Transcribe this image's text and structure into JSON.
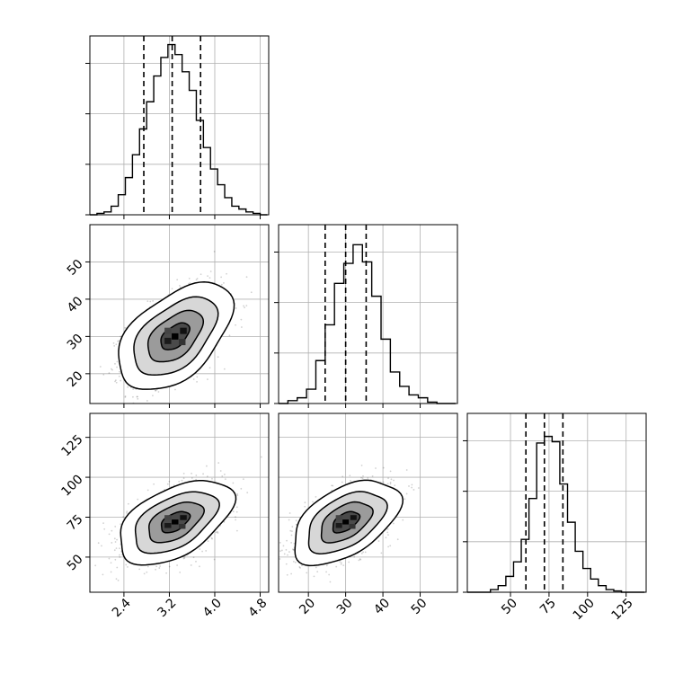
{
  "chart_data": {
    "type": "corner",
    "grid": true,
    "colors": {
      "line": "#000000",
      "grid": "#b0b0b0",
      "point": "#000000",
      "background": "#ffffff"
    },
    "panel_size": 199,
    "panel_gap": 11,
    "plot_origin": [
      100,
      40
    ],
    "params": [
      {
        "xlim": [
          1.8,
          4.95
        ],
        "ylim": [
          12,
          60
        ],
        "ticks": [
          2.4,
          3.2,
          4.0,
          4.8
        ],
        "tick_labels": [
          "2.4",
          "3.2",
          "4.0",
          "4.8"
        ]
      },
      {
        "xlim": [
          12,
          60
        ],
        "ylim": [
          12,
          60
        ],
        "ticks": [
          20,
          30,
          40,
          50
        ],
        "tick_labels": [
          "20",
          "30",
          "40",
          "50"
        ]
      },
      {
        "xlim": [
          22,
          138
        ],
        "ylim": [
          28,
          140
        ],
        "ticks": [
          50,
          75,
          100,
          125
        ],
        "tick_labels": [
          "50",
          "75",
          "100",
          "125"
        ]
      }
    ],
    "histograms": [
      {
        "param": 0,
        "edges": [
          1.8,
          1.925,
          2.05,
          2.175,
          2.3,
          2.425,
          2.55,
          2.675,
          2.8,
          2.925,
          3.05,
          3.175,
          3.3,
          3.425,
          3.55,
          3.675,
          3.8,
          3.925,
          4.05,
          4.175,
          4.3,
          4.425,
          4.55,
          4.675,
          4.8,
          4.925
        ],
        "counts": [
          0,
          1,
          2,
          6,
          14,
          26,
          42,
          60,
          79,
          97,
          110,
          119,
          112,
          100,
          87,
          66,
          47,
          32,
          21,
          12,
          6,
          4,
          2,
          1,
          0
        ],
        "quantiles": [
          2.75,
          3.25,
          3.75
        ],
        "ymax": 120
      },
      {
        "param": 1,
        "edges": [
          12,
          14.5,
          17,
          19.5,
          22,
          24.5,
          27,
          29.5,
          32,
          34.5,
          37,
          39.5,
          42,
          44.5,
          47,
          49.5,
          52,
          54.5,
          57,
          59.5
        ],
        "counts": [
          0,
          2,
          4,
          10,
          30,
          55,
          84,
          98,
          111,
          99,
          75,
          45,
          22,
          12,
          6,
          4,
          1,
          0,
          0
        ],
        "quantiles": [
          24.5,
          30,
          35.5
        ],
        "ymax": 120
      },
      {
        "param": 2,
        "edges": [
          22,
          27,
          32,
          37,
          42,
          47,
          52,
          57,
          62,
          67,
          72,
          77,
          82,
          87,
          92,
          97,
          102,
          107,
          112,
          117,
          122,
          127,
          132,
          137
        ],
        "counts": [
          0,
          0,
          0,
          2,
          5,
          12,
          23,
          40,
          71,
          113,
          118,
          114,
          82,
          53,
          31,
          18,
          10,
          5,
          2,
          1,
          0,
          0,
          0
        ],
        "quantiles": [
          60,
          72,
          84
        ],
        "ymax": 130
      }
    ],
    "joints": [
      {
        "row": 1,
        "col": 0,
        "xparam": 0,
        "yparam": 1,
        "mean": [
          3.3,
          30
        ],
        "sd": [
          0.42,
          6
        ],
        "rho": 0.5,
        "n": 1800,
        "contour_scales": [
          2.4,
          1.75,
          1.15,
          0.6
        ]
      },
      {
        "row": 2,
        "col": 0,
        "xparam": 0,
        "yparam": 2,
        "mean": [
          3.3,
          72
        ],
        "sd": [
          0.42,
          11
        ],
        "rho": 0.5,
        "n": 1800,
        "contour_scales": [
          2.4,
          1.75,
          1.15,
          0.6
        ]
      },
      {
        "row": 2,
        "col": 1,
        "xparam": 1,
        "yparam": 2,
        "mean": [
          30,
          72
        ],
        "sd": [
          6,
          11
        ],
        "rho": 0.5,
        "n": 1800,
        "contour_scales": [
          2.4,
          1.75,
          1.15,
          0.6
        ]
      }
    ]
  }
}
